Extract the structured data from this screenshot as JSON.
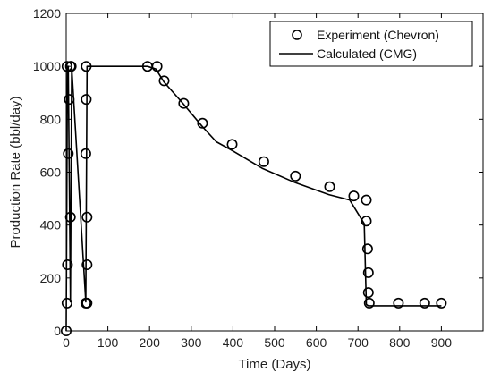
{
  "chart_data": {
    "type": "line",
    "xlabel": "Time (Days)",
    "ylabel": "Production Rate (bbl/day)",
    "xlim": [
      0,
      1000
    ],
    "ylim": [
      0,
      1200
    ],
    "xticks": [
      0,
      100,
      200,
      300,
      400,
      500,
      600,
      700,
      800,
      900
    ],
    "yticks": [
      0,
      200,
      400,
      600,
      800,
      1000,
      1200
    ],
    "legend_position": "top-right",
    "series": [
      {
        "name": "Experiment (Chevron)",
        "kind": "markers",
        "marker": "open-circle",
        "color": "#000000",
        "x": [
          0,
          2,
          2,
          3,
          5,
          7,
          10,
          10,
          12,
          47,
          47,
          48,
          48,
          50,
          50,
          50,
          195,
          218,
          235,
          282,
          327,
          398,
          474,
          550,
          632,
          690,
          720,
          720,
          723,
          725,
          725,
          727,
          797,
          860,
          900
        ],
        "y": [
          0,
          1000,
          105,
          250,
          670,
          875,
          1000,
          430,
          1000,
          105,
          670,
          1000,
          875,
          430,
          250,
          105,
          1000,
          1000,
          945,
          860,
          785,
          705,
          640,
          585,
          545,
          510,
          415,
          495,
          310,
          220,
          145,
          105,
          105,
          105,
          105
        ]
      },
      {
        "name": "Calculated (CMG)",
        "kind": "line",
        "color": "#000000",
        "x": [
          0,
          3,
          5,
          10,
          13,
          47,
          50,
          195,
          215,
          235,
          280,
          325,
          360,
          400,
          470,
          550,
          630,
          680,
          715,
          720,
          725,
          800,
          900
        ],
        "y": [
          0,
          1000,
          1000,
          110,
          1000,
          110,
          1000,
          1000,
          990,
          940,
          860,
          775,
          715,
          680,
          615,
          560,
          515,
          495,
          405,
          100,
          95,
          95,
          95
        ]
      }
    ]
  },
  "legend": {
    "experiment_label": "Experiment (Chevron)",
    "calculated_label": "Calculated (CMG)"
  }
}
